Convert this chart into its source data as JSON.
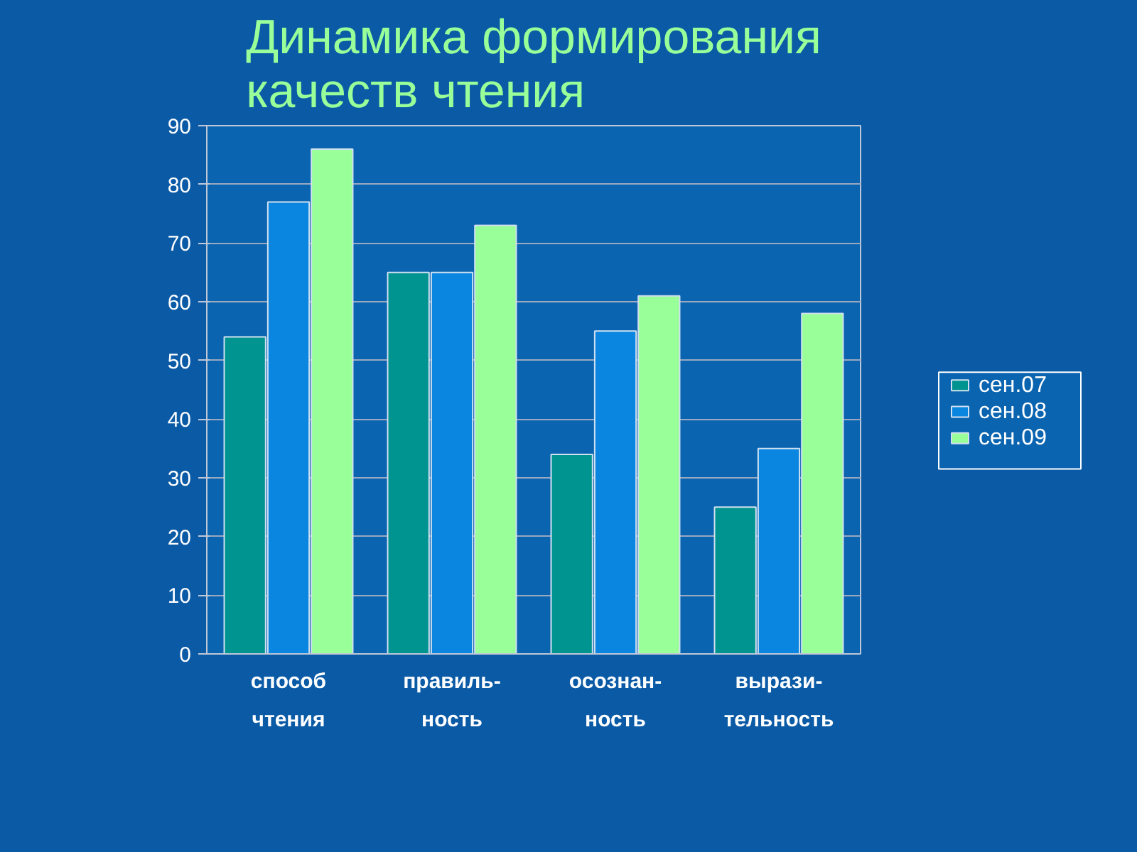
{
  "chart_data": {
    "type": "bar",
    "title": "Динамика формирования\nкачеств чтения",
    "categories": [
      "способ\nчтения",
      "правиль-\nность",
      "осознан-\nность",
      "вырази-\nтельность"
    ],
    "series": [
      {
        "name": "сен.07",
        "color": "#009490",
        "values": [
          54,
          65,
          34,
          25
        ]
      },
      {
        "name": "сен.08",
        "color": "#0a86e0",
        "values": [
          77,
          65,
          55,
          35
        ]
      },
      {
        "name": "сен.09",
        "color": "#99ff99",
        "values": [
          86,
          73,
          61,
          58
        ]
      }
    ],
    "ylim": [
      0,
      90
    ],
    "yticks": [
      0,
      10,
      20,
      30,
      40,
      50,
      60,
      70,
      80,
      90
    ],
    "grid": "y",
    "legend": "right"
  }
}
